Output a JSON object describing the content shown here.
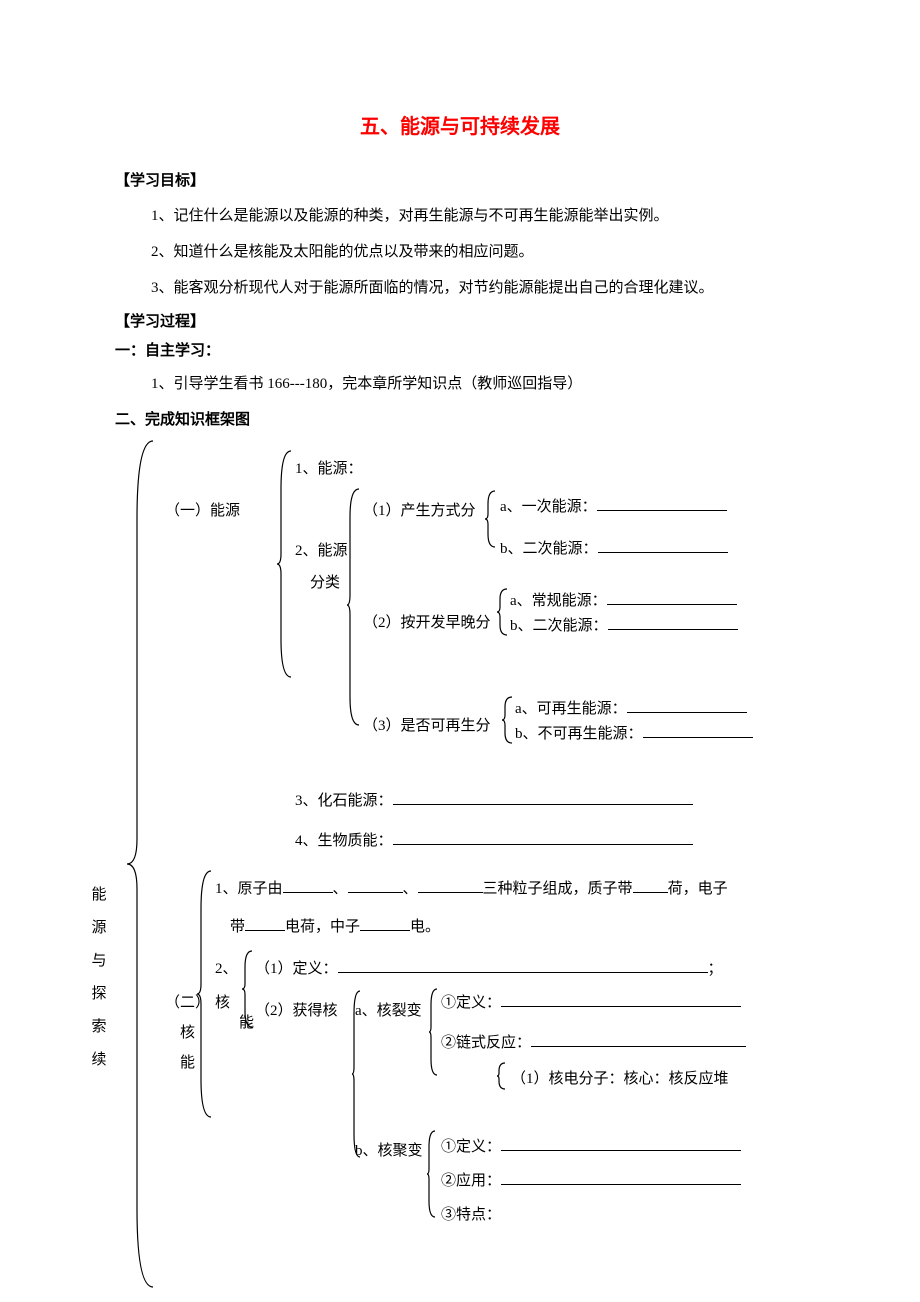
{
  "title": "五、能源与可持续发展",
  "h1": "【学习目标】",
  "obj1": "1、记住什么是能源以及能源的种类，对再生能源与不可再生能源能举出实例。",
  "obj2": "2、知道什么是核能及太阳能的优点以及带来的相应问题。",
  "obj3": "3、能客观分析现代人对于能源所面临的情况，对节约能源能提出自己的合理化建议。",
  "h2": "【学习过程】",
  "h3": "一：自主学习：",
  "step1": "1、引导学生看书 166---180，完本章所学知识点（教师巡回指导）",
  "h4": "二、完成知识框架图",
  "d": {
    "sec1": "（一）能源",
    "n1": "1、能源：",
    "n2a": "2、能源",
    "n2b": "分类",
    "c1": "（1）产生方式分",
    "c1a": "a、一次能源：",
    "c1b": "b、二次能源：",
    "c2": "（2）按开发早晚分",
    "c2a": "a、常规能源：",
    "c2b": "b、二次能源：",
    "c3": "（3）是否可再生分",
    "c3a": "a、可再生能源：",
    "c3b": "b、不可再生能源：",
    "n3": "3、化石能源：",
    "n4": "4、生物质能：",
    "vert": "能 源 与 探 索 续",
    "sec2a": "（二）",
    "sec2b": "核",
    "sec2c": "能",
    "atom1a": "1、原子由",
    "atom1b": "、",
    "atom1c": "、",
    "atom1d": "三种粒子组成，质子带",
    "atom1e": "荷，电子",
    "atom2a": "带",
    "atom2b": "电荷，中子",
    "atom2c": "电。",
    "k2": "2、",
    "ke": "核",
    "neng": "能",
    "def1": "（1）定义：",
    "def1end": "；",
    "get": "（2）获得核",
    "fis": "a、核裂变",
    "fis1": "①定义：",
    "fis2": "②链式反应：",
    "app": "（1）核电分子：核心：核反应堆",
    "fus": "b、核聚变",
    "fus1": "①定义：",
    "fus2": "②应用：",
    "fus3": "③特点："
  },
  "style": {
    "title_color": "#ff0000"
  }
}
